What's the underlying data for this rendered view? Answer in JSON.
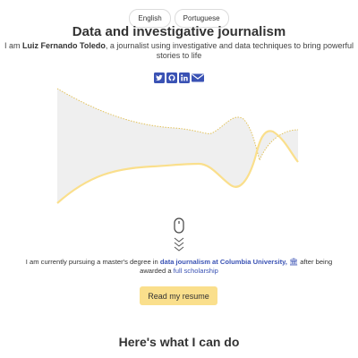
{
  "languages": [
    {
      "label": "English"
    },
    {
      "label": "Portuguese"
    }
  ],
  "header": {
    "title": "Data and investigative journalism",
    "intro_prefix": "I am ",
    "intro_name": "Luiz Fernando Toledo",
    "intro_suffix": ", a journalist using investigative and data techniques to bring powerful stories to life"
  },
  "social": [
    {
      "icon": "twitter-icon"
    },
    {
      "icon": "github-icon"
    },
    {
      "icon": "linkedin-icon"
    },
    {
      "icon": "mail-icon"
    }
  ],
  "colors": {
    "brand_blue": "#3a52b4",
    "chart_fill": "#efefef",
    "chart_line_yellow": "#fadf8c",
    "chart_line_dotted": "#e2c25a",
    "button_bg": "#fadf8c"
  },
  "scroll_indicator": {
    "icon": "mouse-scroll-icon"
  },
  "bio": {
    "prefix": "I am currently pursuing a master's degree in ",
    "link1": "data journalism at Columbia University,",
    "institution_icon": "🏛",
    "middle": " after being awarded a ",
    "link2": "full scholarship"
  },
  "resume_button": {
    "label": "Read my resume"
  },
  "section": {
    "title": "Here's what I can do"
  }
}
